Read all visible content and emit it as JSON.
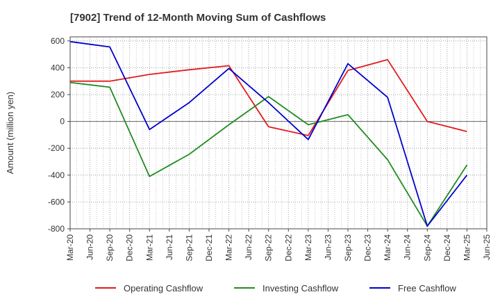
{
  "chart_data": {
    "type": "line",
    "title": "[7902]  Trend of 12-Month Moving Sum of Cashflows",
    "ylabel": "Amount (million yen)",
    "xlabel": "",
    "ylim": [
      -800,
      630
    ],
    "yticks": [
      -800,
      -600,
      -400,
      -200,
      0,
      200,
      400,
      600
    ],
    "x_ticks": [
      "Mar-20",
      "Jun-20",
      "Sep-20",
      "Dec-20",
      "Mar-21",
      "Jun-21",
      "Sep-21",
      "Dec-21",
      "Mar-22",
      "Jun-22",
      "Sep-22",
      "Dec-22",
      "Mar-23",
      "Jun-23",
      "Sep-23",
      "Dec-23",
      "Mar-24",
      "Jun-24",
      "Sep-24",
      "Dec-24",
      "Mar-25",
      "Jun-25"
    ],
    "grid": true,
    "legend_position": "bottom",
    "series": [
      {
        "name": "Operating Cashflow",
        "color": "#e31a1c",
        "points": [
          {
            "x": "Mar-20",
            "y": 300
          },
          {
            "x": "Sep-20",
            "y": 300
          },
          {
            "x": "Mar-21",
            "y": 350
          },
          {
            "x": "Sep-21",
            "y": 385
          },
          {
            "x": "Mar-22",
            "y": 415
          },
          {
            "x": "Sep-22",
            "y": -40
          },
          {
            "x": "Mar-23",
            "y": -105
          },
          {
            "x": "Sep-23",
            "y": 380
          },
          {
            "x": "Mar-24",
            "y": 460
          },
          {
            "x": "Sep-24",
            "y": 0
          },
          {
            "x": "Mar-25",
            "y": -75
          }
        ]
      },
      {
        "name": "Investing Cashflow",
        "color": "#228b22",
        "points": [
          {
            "x": "Mar-20",
            "y": 290
          },
          {
            "x": "Sep-20",
            "y": 255
          },
          {
            "x": "Mar-21",
            "y": -410
          },
          {
            "x": "Sep-21",
            "y": -245
          },
          {
            "x": "Mar-22",
            "y": -25
          },
          {
            "x": "Sep-22",
            "y": 185
          },
          {
            "x": "Mar-23",
            "y": -25
          },
          {
            "x": "Sep-23",
            "y": 50
          },
          {
            "x": "Mar-24",
            "y": -285
          },
          {
            "x": "Sep-24",
            "y": -780
          },
          {
            "x": "Mar-25",
            "y": -325
          }
        ]
      },
      {
        "name": "Free Cashflow",
        "color": "#0000cd",
        "points": [
          {
            "x": "Mar-20",
            "y": 595
          },
          {
            "x": "Sep-20",
            "y": 555
          },
          {
            "x": "Mar-21",
            "y": -60
          },
          {
            "x": "Sep-21",
            "y": 140
          },
          {
            "x": "Mar-22",
            "y": 395
          },
          {
            "x": "Sep-22",
            "y": 140
          },
          {
            "x": "Mar-23",
            "y": -135
          },
          {
            "x": "Sep-23",
            "y": 430
          },
          {
            "x": "Mar-24",
            "y": 180
          },
          {
            "x": "Sep-24",
            "y": -780
          },
          {
            "x": "Mar-25",
            "y": -400
          }
        ]
      }
    ]
  }
}
